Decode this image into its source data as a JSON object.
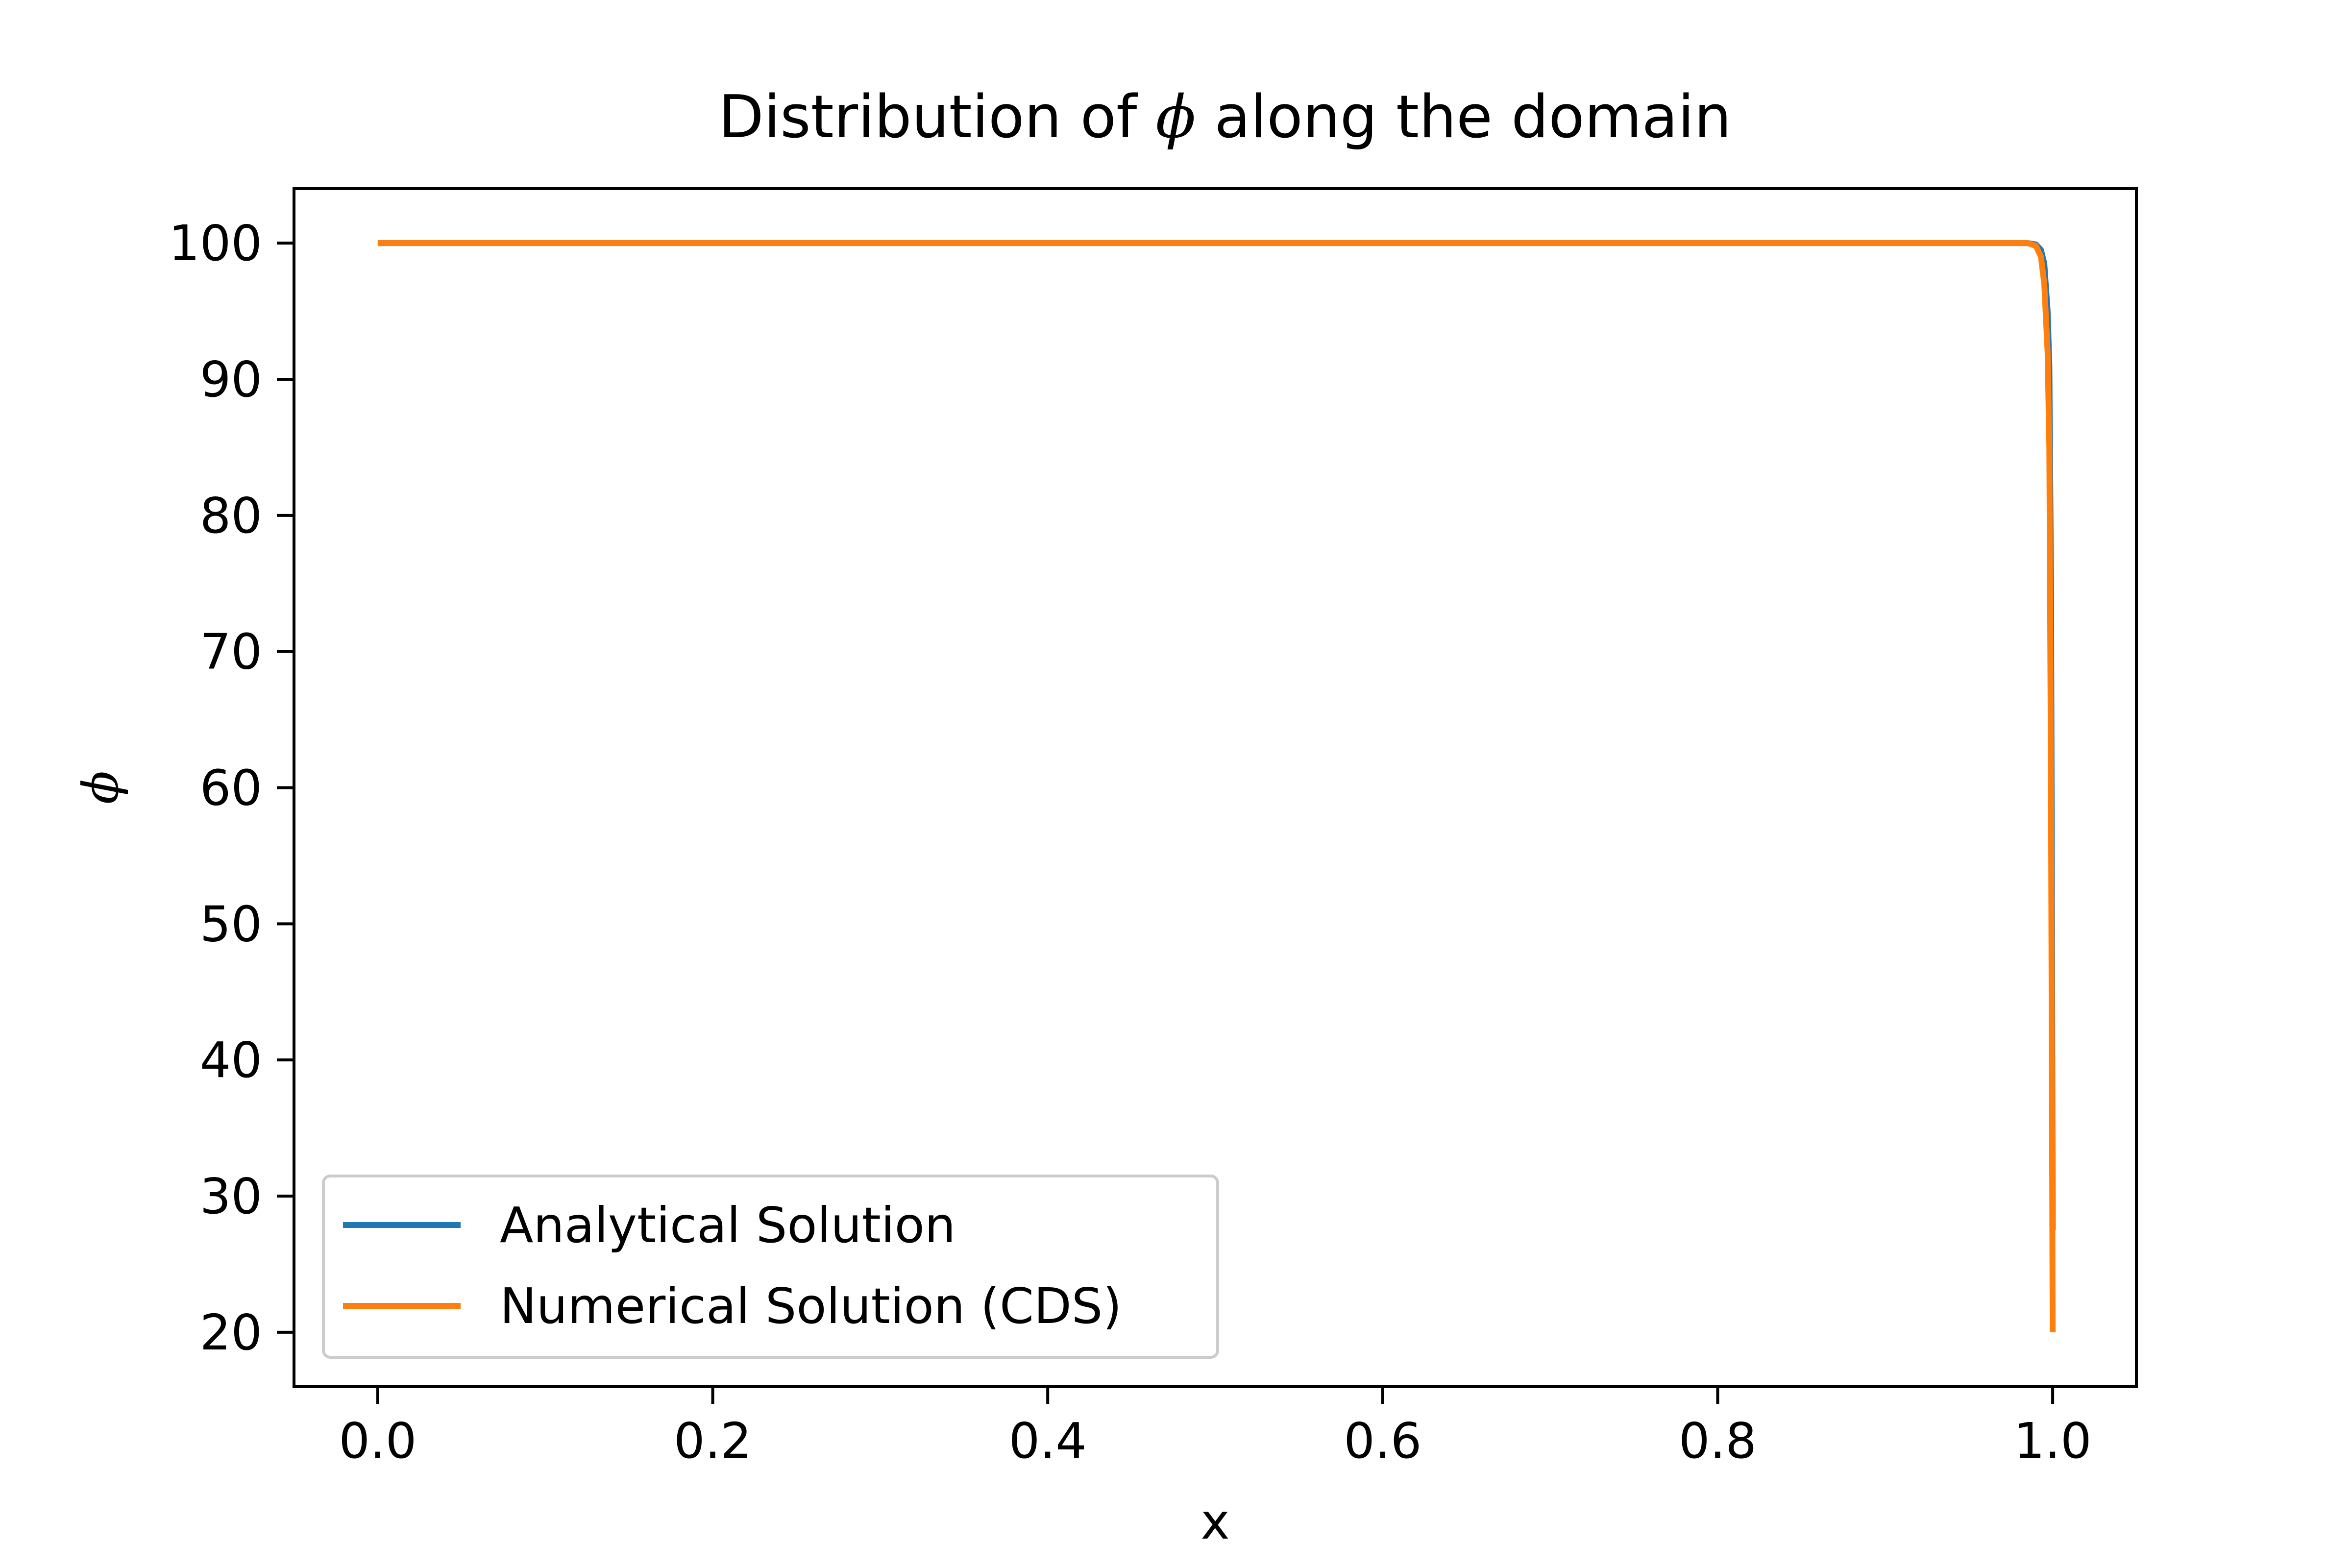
{
  "chart_data": {
    "type": "line",
    "title": {
      "prefix": "Distribution of ",
      "symbol": "ϕ",
      "suffix": " along the domain"
    },
    "xlabel": "x",
    "ylabel": "ϕ",
    "xlim": [
      -0.05,
      1.05
    ],
    "ylim": [
      16,
      104
    ],
    "x_ticks": [
      0.0,
      0.2,
      0.4,
      0.6,
      0.8,
      1.0
    ],
    "x_tick_labels": [
      "0.0",
      "0.2",
      "0.4",
      "0.6",
      "0.8",
      "1.0"
    ],
    "y_ticks": [
      20,
      30,
      40,
      50,
      60,
      70,
      80,
      90,
      100
    ],
    "y_tick_labels": [
      "20",
      "30",
      "40",
      "50",
      "60",
      "70",
      "80",
      "90",
      "100"
    ],
    "grid": false,
    "legend_position": "lower-left",
    "series": [
      {
        "name": "Analytical Solution",
        "color": "#1f77b4",
        "x": [
          0.0,
          0.2,
          0.4,
          0.6,
          0.8,
          0.95,
          0.985,
          0.99,
          0.993,
          0.995,
          0.997,
          0.998,
          0.999,
          0.9995,
          1.0
        ],
        "y": [
          100,
          100,
          100,
          100,
          100,
          100,
          100,
          99.9,
          99.5,
          98.5,
          95,
          91,
          75,
          55,
          27.5
        ]
      },
      {
        "name": "Numerical Solution (CDS)",
        "color": "#ff7f0e",
        "x": [
          0.0,
          0.2,
          0.4,
          0.6,
          0.8,
          0.95,
          0.985,
          0.99,
          0.993,
          0.995,
          0.997,
          0.998,
          0.999,
          1.0
        ],
        "y": [
          100,
          100,
          100,
          100,
          100,
          100,
          100,
          99.8,
          99,
          97,
          92,
          85,
          60,
          20
        ]
      }
    ]
  }
}
